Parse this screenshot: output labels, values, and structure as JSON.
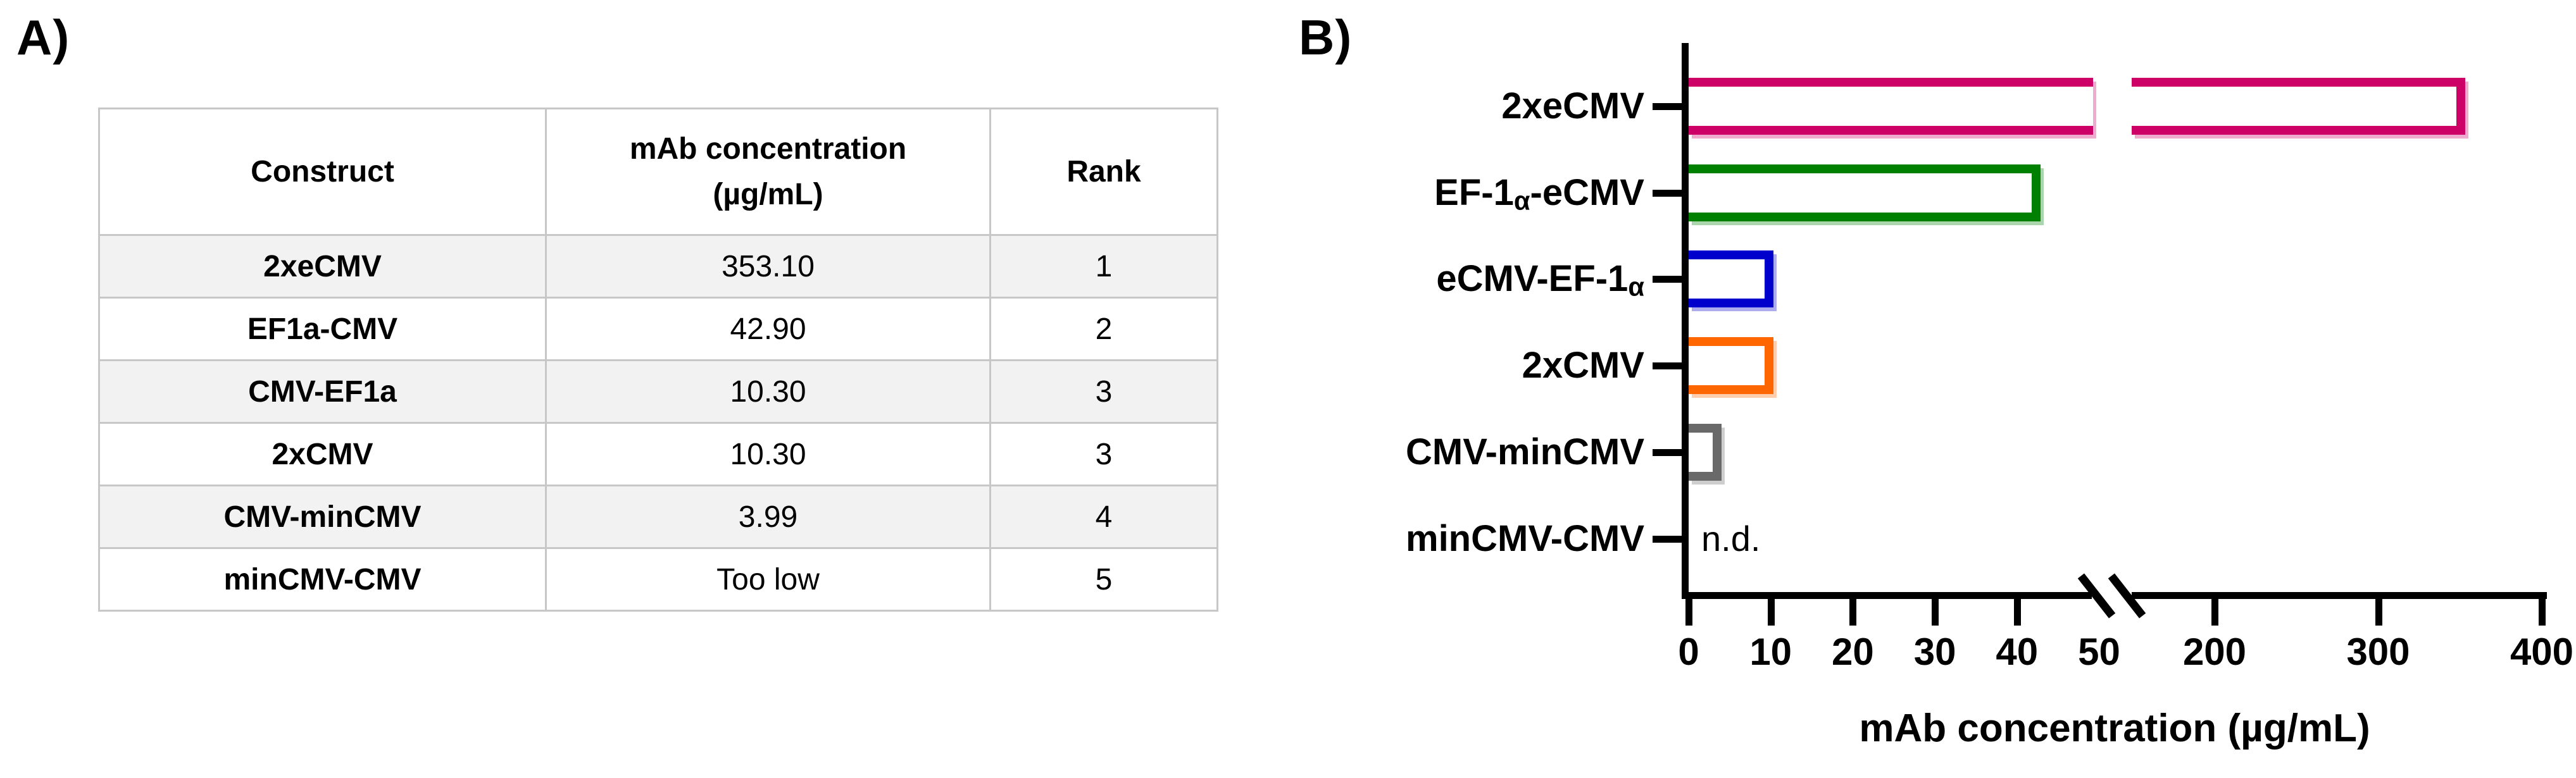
{
  "panel_a": {
    "label": "A)",
    "table": {
      "headers": [
        "Construct",
        "mAb concentration\n(µg/mL)",
        "Rank"
      ],
      "rows": [
        [
          "2xeCMV",
          "353.10",
          "1"
        ],
        [
          "EF1a-CMV",
          "42.90",
          "2"
        ],
        [
          "CMV-EF1a",
          "10.30",
          "3"
        ],
        [
          "2xCMV",
          "10.30",
          "3"
        ],
        [
          "CMV-minCMV",
          "3.99",
          "4"
        ],
        [
          "minCMV-CMV",
          "Too low",
          "5"
        ]
      ],
      "stripe_color": "#f2f2f2",
      "border_color": "#c7c7c7"
    }
  },
  "panel_b": {
    "label": "B)"
  },
  "chart_data": {
    "type": "bar",
    "orientation": "horizontal",
    "title": "",
    "xlabel": "mAb concentration (µg/mL)",
    "categories": [
      "2xeCMV",
      "EF-1α-eCMV",
      "eCMV-EF-1α",
      "2xCMV",
      "CMV-minCMV",
      "minCMV-CMV"
    ],
    "values": [
      353.1,
      42.9,
      10.3,
      10.3,
      3.99,
      null
    ],
    "not_detected_label": "n.d.",
    "bar_colors": [
      "#CC0066",
      "#008000",
      "#0000CC",
      "#FF6600",
      "#696969",
      null
    ],
    "bar_style": "hollow-outline",
    "x_ticks": [
      0,
      10,
      20,
      30,
      40,
      50,
      200,
      300,
      400
    ],
    "xlim": [
      0,
      400
    ],
    "axis_break_between": [
      50,
      200
    ],
    "grid": false,
    "legend": false,
    "axis_color": "#000000"
  }
}
